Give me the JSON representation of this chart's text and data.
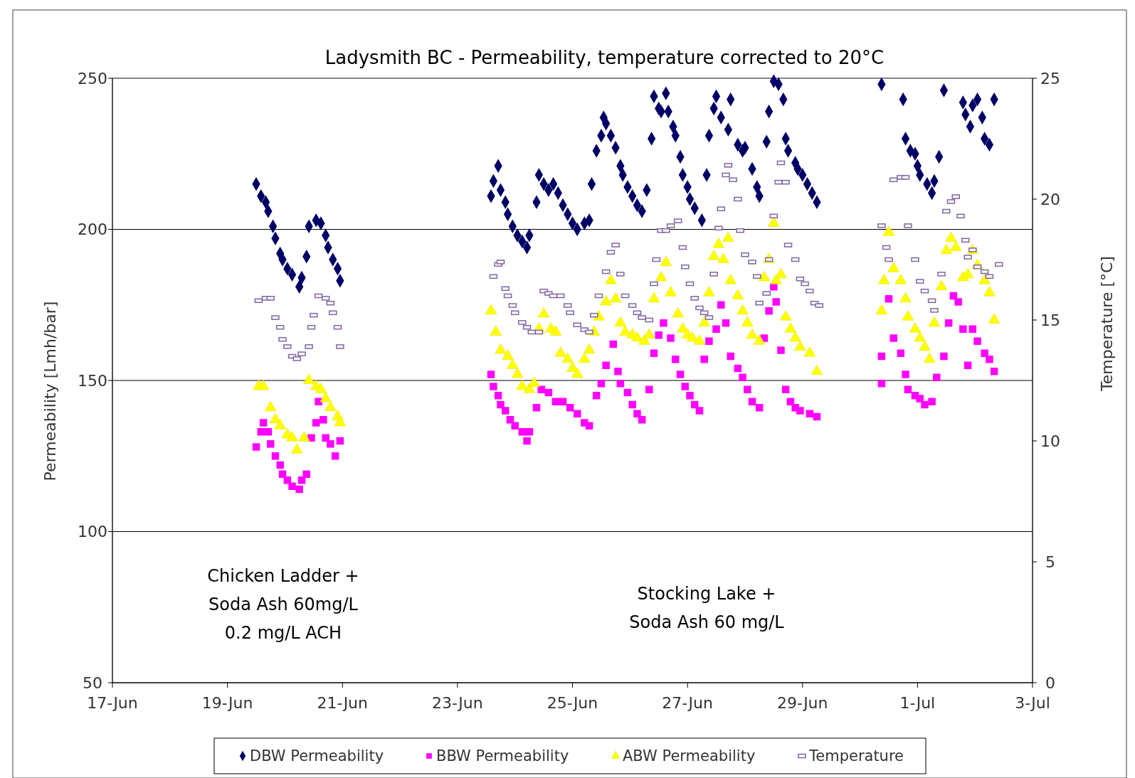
{
  "chart_data": {
    "type": "scatter",
    "title": "Ladysmith BC - Permeability, temperature corrected to 20°C",
    "ylabel": "Permeability [Lmh/bar]",
    "y2label": "Temperature [°C]",
    "xlim": [
      "--06-17",
      "--07-03"
    ],
    "xticks": [
      {
        "value": "--06-17",
        "label": "17-Jun"
      },
      {
        "value": "--06-19",
        "label": "19-Jun"
      },
      {
        "value": "--06-21",
        "label": "21-Jun"
      },
      {
        "value": "--06-23",
        "label": "23-Jun"
      },
      {
        "value": "--06-25",
        "label": "25-Jun"
      },
      {
        "value": "--06-27",
        "label": "27-Jun"
      },
      {
        "value": "--06-29",
        "label": "29-Jun"
      },
      {
        "value": "--07-01",
        "label": "1-Jul"
      },
      {
        "value": "--07-03",
        "label": "3-Jul"
      }
    ],
    "ylim": [
      50,
      250
    ],
    "yticks": [
      50,
      100,
      150,
      200,
      250
    ],
    "y2lim": [
      0,
      25
    ],
    "y2ticks": [
      0,
      5,
      10,
      15,
      20,
      25
    ],
    "grid": "y",
    "legend": "bottom",
    "annotations": [
      "Chicken Ladder +\nSoda Ash 60mg/L\n0.2 mg/L ACH",
      "Stocking Lake +\nSoda Ash 60 mg/L"
    ],
    "series": [
      {
        "name": "DBW Permeability",
        "color": "#000066",
        "marker": "diamond",
        "x": [
          "--06-19T12:00",
          "--06-19T14:00",
          "--06-19T16:00",
          "--06-19T17:00",
          "--06-19T19:00",
          "--06-19T20:00",
          "--06-19T22:00",
          "--06-19T23:00",
          "--06-20T01:00",
          "--06-20T03:00",
          "--06-20T06:00",
          "--06-20T07:00",
          "--06-20T09:00",
          "--06-20T10:00",
          "--06-20T13:00",
          "--06-20T15:00",
          "--06-20T17:00",
          "--06-20T18:00",
          "--06-20T20:00",
          "--06-20T22:00",
          "--06-20T23:00",
          "--06-23T14:00",
          "--06-23T15:00",
          "--06-23T17:00",
          "--06-23T18:00",
          "--06-23T20:00",
          "--06-23T21:00",
          "--06-23T23:00",
          "--06-24T01:00",
          "--06-24T03:00",
          "--06-24T05:00",
          "--06-24T06:00",
          "--06-24T09:00",
          "--06-24T10:00",
          "--06-24T12:00",
          "--06-24T14:00",
          "--06-24T16:00",
          "--06-24T18:00",
          "--06-24T20:00",
          "--06-24T22:00",
          "--06-25T00:00",
          "--06-25T02:00",
          "--06-25T05:00",
          "--06-25T07:00",
          "--06-25T08:00",
          "--06-25T10:00",
          "--06-25T12:00",
          "--06-25T13:00",
          "--06-25T14:00",
          "--06-25T16:00",
          "--06-25T18:00",
          "--06-25T20:00",
          "--06-25T21:00",
          "--06-25T23:00",
          "--06-26T01:00",
          "--06-26T03:00",
          "--06-26T05:00",
          "--06-26T07:00",
          "--06-26T09:00",
          "--06-26T10:00",
          "--06-26T12:00",
          "--06-26T13:00",
          "--06-26T15:00",
          "--06-26T16:00",
          "--06-26T18:00",
          "--06-26T19:00",
          "--06-26T21:00",
          "--06-26T22:00",
          "--06-27T00:00",
          "--06-27T01:00",
          "--06-27T03:00",
          "--06-27T06:00",
          "--06-27T08:00",
          "--06-27T09:00",
          "--06-27T11:00",
          "--06-27T12:00",
          "--06-27T14:00",
          "--06-27T17:00",
          "--06-27T18:00",
          "--06-27T21:00",
          "--06-27T23:00",
          "--06-28T00:00",
          "--06-28T03:00",
          "--06-28T05:00",
          "--06-28T06:00",
          "--06-28T09:00",
          "--06-28T10:00",
          "--06-28T12:00",
          "--06-28T14:00",
          "--06-28T16:00",
          "--06-28T17:00",
          "--06-28T18:00",
          "--06-28T21:00",
          "--06-28T22:00",
          "--06-29T00:00",
          "--06-29T02:00",
          "--06-29T04:00",
          "--06-29T06:00",
          "--06-30T09:00",
          "--06-30T18:00",
          "--06-30T19:00",
          "--06-30T21:00",
          "--06-30T23:00",
          "--07-01T00:00",
          "--07-01T01:00",
          "--07-01T04:00",
          "--07-01T06:00",
          "--07-01T07:00",
          "--07-01T09:00",
          "--07-01T11:00",
          "--07-01T19:00",
          "--07-01T20:00",
          "--07-01T22:00",
          "--07-01T23:00",
          "--07-02T01:00",
          "--07-02T03:00",
          "--07-02T04:00",
          "--07-02T06:00",
          "--07-02T08:00"
        ],
        "values": [
          215,
          211,
          209,
          206,
          201,
          197,
          192,
          190,
          187,
          185,
          181,
          184,
          191,
          201,
          203,
          202,
          198,
          194,
          190,
          187,
          183,
          211,
          216,
          221,
          213,
          209,
          205,
          201,
          198,
          196,
          194,
          198,
          209,
          218,
          215,
          213,
          215,
          212,
          208,
          205,
          202,
          200,
          202,
          203,
          215,
          226,
          231,
          237,
          235,
          231,
          227,
          221,
          218,
          214,
          211,
          208,
          206,
          213,
          230,
          244,
          240,
          239,
          245,
          239,
          234,
          231,
          224,
          218,
          214,
          210,
          207,
          203,
          218,
          231,
          240,
          244,
          237,
          233,
          243,
          228,
          226,
          227,
          220,
          214,
          211,
          229,
          239,
          249,
          248,
          243,
          230,
          226,
          222,
          220,
          218,
          215,
          212,
          209,
          248,
          243,
          230,
          226,
          225,
          221,
          218,
          215,
          212,
          216,
          224,
          246,
          242,
          238,
          234,
          241,
          243,
          237,
          230,
          228,
          243
        ]
      },
      {
        "name": "BBW Permeability",
        "color": "#ff00ff",
        "marker": "square",
        "x": [
          "--06-19T12:00",
          "--06-19T14:00",
          "--06-19T15:00",
          "--06-19T17:00",
          "--06-19T18:00",
          "--06-19T20:00",
          "--06-19T22:00",
          "--06-19T23:00",
          "--06-20T01:00",
          "--06-20T03:00",
          "--06-20T06:00",
          "--06-20T07:00",
          "--06-20T09:00",
          "--06-20T11:00",
          "--06-20T13:00",
          "--06-20T14:00",
          "--06-20T16:00",
          "--06-20T17:00",
          "--06-20T19:00",
          "--06-20T21:00",
          "--06-20T23:00",
          "--06-23T14:00",
          "--06-23T15:00",
          "--06-23T17:00",
          "--06-23T18:00",
          "--06-23T20:00",
          "--06-23T22:00",
          "--06-24T00:00",
          "--06-24T03:00",
          "--06-24T05:00",
          "--06-24T06:00",
          "--06-24T09:00",
          "--06-24T11:00",
          "--06-24T14:00",
          "--06-24T17:00",
          "--06-24T20:00",
          "--06-24T23:00",
          "--06-25T02:00",
          "--06-25T05:00",
          "--06-25T07:00",
          "--06-25T10:00",
          "--06-25T12:00",
          "--06-25T14:00",
          "--06-25T17:00",
          "--06-25T19:00",
          "--06-25T20:00",
          "--06-25T23:00",
          "--06-26T01:00",
          "--06-26T03:00",
          "--06-26T05:00",
          "--06-26T08:00",
          "--06-26T10:00",
          "--06-26T12:00",
          "--06-26T14:00",
          "--06-26T17:00",
          "--06-26T19:00",
          "--06-26T21:00",
          "--06-26T23:00",
          "--06-27T01:00",
          "--06-27T03:00",
          "--06-27T05:00",
          "--06-27T07:00",
          "--06-27T09:00",
          "--06-27T12:00",
          "--06-27T14:00",
          "--06-27T16:00",
          "--06-27T18:00",
          "--06-27T21:00",
          "--06-27T23:00",
          "--06-28T01:00",
          "--06-28T03:00",
          "--06-28T06:00",
          "--06-28T08:00",
          "--06-28T10:00",
          "--06-28T12:00",
          "--06-28T13:00",
          "--06-28T15:00",
          "--06-28T17:00",
          "--06-28T19:00",
          "--06-28T21:00",
          "--06-28T23:00",
          "--06-29T03:00",
          "--06-29T06:00",
          "--06-30T09:00",
          "--06-30T09:00",
          "--06-30T12:00",
          "--06-30T14:00",
          "--06-30T17:00",
          "--06-30T19:00",
          "--06-30T20:00",
          "--06-30T23:00",
          "--07-01T01:00",
          "--07-01T03:00",
          "--07-01T06:00",
          "--07-01T08:00",
          "--07-01T11:00",
          "--07-01T13:00",
          "--07-01T15:00",
          "--07-01T17:00",
          "--07-01T19:00",
          "--07-01T21:00",
          "--07-01T23:00",
          "--07-02T01:00",
          "--07-02T04:00",
          "--07-02T06:00",
          "--07-02T08:00"
        ],
        "values": [
          128,
          133,
          136,
          133,
          129,
          125,
          122,
          119,
          117,
          115,
          114,
          117,
          119,
          131,
          136,
          143,
          137,
          131,
          129,
          125,
          130,
          152,
          148,
          145,
          142,
          140,
          137,
          135,
          133,
          130,
          133,
          141,
          147,
          146,
          143,
          143,
          141,
          139,
          136,
          135,
          145,
          149,
          155,
          162,
          153,
          149,
          146,
          142,
          139,
          137,
          147,
          159,
          165,
          169,
          164,
          157,
          152,
          148,
          145,
          142,
          140,
          157,
          163,
          167,
          175,
          169,
          158,
          154,
          151,
          147,
          143,
          141,
          164,
          173,
          181,
          176,
          160,
          147,
          143,
          141,
          140,
          139,
          138,
          158,
          149,
          177,
          164,
          159,
          152,
          147,
          145,
          144,
          142,
          143,
          151,
          158,
          169,
          178,
          176,
          167,
          155,
          167,
          163,
          159,
          157,
          153
        ]
      },
      {
        "name": "ABW Permeability",
        "color": "#ffff00",
        "marker": "triangle",
        "x": [
          "--06-19T13:00",
          "--06-19T15:00",
          "--06-19T18:00",
          "--06-19T20:00",
          "--06-19T22:00",
          "--06-20T01:00",
          "--06-20T03:00",
          "--06-20T05:00",
          "--06-20T08:00",
          "--06-20T10:00",
          "--06-20T13:00",
          "--06-20T15:00",
          "--06-20T17:00",
          "--06-20T19:00",
          "--06-20T22:00",
          "--06-20T23:00",
          "--06-23T14:00",
          "--06-23T16:00",
          "--06-23T18:00",
          "--06-23T21:00",
          "--06-23T23:00",
          "--06-24T01:00",
          "--06-24T03:00",
          "--06-24T06:00",
          "--06-24T08:00",
          "--06-24T10:00",
          "--06-24T12:00",
          "--06-24T15:00",
          "--06-24T17:00",
          "--06-24T19:00",
          "--06-24T22:00",
          "--06-25T00:00",
          "--06-25T02:00",
          "--06-25T05:00",
          "--06-25T07:00",
          "--06-25T09:00",
          "--06-25T11:00",
          "--06-25T14:00",
          "--06-25T16:00",
          "--06-25T18:00",
          "--06-25T20:00",
          "--06-25T22:00",
          "--06-26T01:00",
          "--06-26T03:00",
          "--06-26T06:00",
          "--06-26T08:00",
          "--06-26T10:00",
          "--06-26T13:00",
          "--06-26T15:00",
          "--06-26T17:00",
          "--06-26T20:00",
          "--06-26T22:00",
          "--06-27T00:00",
          "--06-27T02:00",
          "--06-27T05:00",
          "--06-27T07:00",
          "--06-27T09:00",
          "--06-27T11:00",
          "--06-27T13:00",
          "--06-27T15:00",
          "--06-27T17:00",
          "--06-27T18:00",
          "--06-27T21:00",
          "--06-27T23:00",
          "--06-28T01:00",
          "--06-28T03:00",
          "--06-28T06:00",
          "--06-28T08:00",
          "--06-28T10:00",
          "--06-28T12:00",
          "--06-28T13:00",
          "--06-28T15:00",
          "--06-28T17:00",
          "--06-28T19:00",
          "--06-28T21:00",
          "--06-28T23:00",
          "--06-29T03:00",
          "--06-29T06:00",
          "--06-30T09:00",
          "--06-30T10:00",
          "--06-30T12:00",
          "--06-30T14:00",
          "--06-30T17:00",
          "--06-30T19:00",
          "--06-30T20:00",
          "--06-30T23:00",
          "--07-01T01:00",
          "--07-01T03:00",
          "--07-01T05:00",
          "--07-01T07:00",
          "--07-01T10:00",
          "--07-01T12:00",
          "--07-01T14:00",
          "--07-01T16:00",
          "--07-01T19:00",
          "--07-01T21:00",
          "--07-01T23:00",
          "--07-02T01:00",
          "--07-02T04:00",
          "--07-02T06:00",
          "--07-02T08:00"
        ],
        "values": [
          148,
          148,
          141,
          137,
          135,
          132,
          131,
          127,
          131,
          150,
          148,
          147,
          144,
          141,
          138,
          136,
          173,
          166,
          160,
          158,
          155,
          152,
          148,
          147,
          149,
          167,
          172,
          167,
          166,
          159,
          157,
          154,
          152,
          157,
          160,
          166,
          171,
          176,
          183,
          177,
          169,
          166,
          165,
          164,
          163,
          165,
          177,
          184,
          189,
          179,
          172,
          167,
          165,
          164,
          163,
          169,
          179,
          191,
          195,
          190,
          197,
          183,
          178,
          173,
          169,
          165,
          163,
          184,
          190,
          202,
          183,
          185,
          171,
          167,
          164,
          161,
          159,
          153,
          173,
          183,
          199,
          187,
          183,
          177,
          171,
          167,
          164,
          161,
          157,
          169,
          181,
          193,
          197,
          194,
          184,
          185,
          193,
          188,
          183,
          179,
          170
        ]
      },
      {
        "name": "Temperature",
        "color": "#8064a2",
        "marker": "square",
        "axis": "y2",
        "x": [
          "--06-19T13:00",
          "--06-19T16:00",
          "--06-19T18:00",
          "--06-19T20:00",
          "--06-19T22:00",
          "--06-19T23:00",
          "--06-20T01:00",
          "--06-20T03:00",
          "--06-20T05:00",
          "--06-20T07:00",
          "--06-20T10:00",
          "--06-20T11:00",
          "--06-20T12:00",
          "--06-20T14:00",
          "--06-20T17:00",
          "--06-20T19:00",
          "--06-20T20:00",
          "--06-20T22:00",
          "--06-20T23:00",
          "--06-23T15:00",
          "--06-23T17:00",
          "--06-23T18:00",
          "--06-23T20:00",
          "--06-23T21:00",
          "--06-23T23:00",
          "--06-24T00:00",
          "--06-24T03:00",
          "--06-24T05:00",
          "--06-24T07:00",
          "--06-24T10:00",
          "--06-24T12:00",
          "--06-24T14:00",
          "--06-24T16:00",
          "--06-24T19:00",
          "--06-24T22:00",
          "--06-24T23:00",
          "--06-25T02:00",
          "--06-25T05:00",
          "--06-25T07:00",
          "--06-25T09:00",
          "--06-25T11:00",
          "--06-25T14:00",
          "--06-25T16:00",
          "--06-25T18:00",
          "--06-25T20:00",
          "--06-25T22:00",
          "--06-26T01:00",
          "--06-26T03:00",
          "--06-26T05:00",
          "--06-26T08:00",
          "--06-26T10:00",
          "--06-26T11:00",
          "--06-26T13:00",
          "--06-26T15:00",
          "--06-26T17:00",
          "--06-26T20:00",
          "--06-26T22:00",
          "--06-26T23:00",
          "--06-27T01:00",
          "--06-27T03:00",
          "--06-27T05:00",
          "--06-27T07:00",
          "--06-27T09:00",
          "--06-27T11:00",
          "--06-27T13:00",
          "--06-27T14:00",
          "--06-27T16:00",
          "--06-27T17:00",
          "--06-27T19:00",
          "--06-27T21:00",
          "--06-27T22:00",
          "--06-28T00:00",
          "--06-28T03:00",
          "--06-28T05:00",
          "--06-28T06:00",
          "--06-28T09:00",
          "--06-28T10:00",
          "--06-28T12:00",
          "--06-28T14:00",
          "--06-28T15:00",
          "--06-28T17:00",
          "--06-28T18:00",
          "--06-28T21:00",
          "--06-28T23:00",
          "--06-29T01:00",
          "--06-29T03:00",
          "--06-29T05:00",
          "--06-29T07:00",
          "--06-30T09:00",
          "--06-30T11:00",
          "--06-30T12:00",
          "--06-30T14:00",
          "--06-30T17:00",
          "--06-30T19:00",
          "--06-30T20:00",
          "--06-30T23:00",
          "--07-01T01:00",
          "--07-01T03:00",
          "--07-01T06:00",
          "--07-01T07:00",
          "--07-01T10:00",
          "--07-01T12:00",
          "--07-01T14:00",
          "--07-01T16:00",
          "--07-01T18:00",
          "--07-01T20:00",
          "--07-01T21:00",
          "--07-01T23:00",
          "--07-02T01:00",
          "--07-02T04:00",
          "--07-02T06:00",
          "--07-02T10:00"
        ],
        "values": [
          15.8,
          15.9,
          15.9,
          15.1,
          14.7,
          14.2,
          13.9,
          13.5,
          13.4,
          13.6,
          13.9,
          14.7,
          15.2,
          16.0,
          15.9,
          15.7,
          15.3,
          14.7,
          13.9,
          16.8,
          17.3,
          17.4,
          16.3,
          16.0,
          15.6,
          15.3,
          14.9,
          14.7,
          14.5,
          14.5,
          16.2,
          16.1,
          16.0,
          16.0,
          15.6,
          15.3,
          14.8,
          14.6,
          14.5,
          15.2,
          16.0,
          17.0,
          17.8,
          18.1,
          16.9,
          16.0,
          15.6,
          15.3,
          15.1,
          15.0,
          16.5,
          17.5,
          18.7,
          18.7,
          18.9,
          19.1,
          18.0,
          17.2,
          16.5,
          15.9,
          15.5,
          15.3,
          15.1,
          16.9,
          18.8,
          19.6,
          21.0,
          21.4,
          20.8,
          20.0,
          18.7,
          17.7,
          17.4,
          16.8,
          15.7,
          16.1,
          17.5,
          19.3,
          20.7,
          21.5,
          20.7,
          18.1,
          17.5,
          16.7,
          16.5,
          16.2,
          15.7,
          15.6,
          18.9,
          18.0,
          17.5,
          20.8,
          20.9,
          20.9,
          18.9,
          17.5,
          16.6,
          16.2,
          15.8,
          15.4,
          16.9,
          19.5,
          19.9,
          20.1,
          19.3,
          18.3,
          17.6,
          17.9,
          17.2,
          17.0,
          16.8,
          17.3
        ]
      }
    ]
  }
}
